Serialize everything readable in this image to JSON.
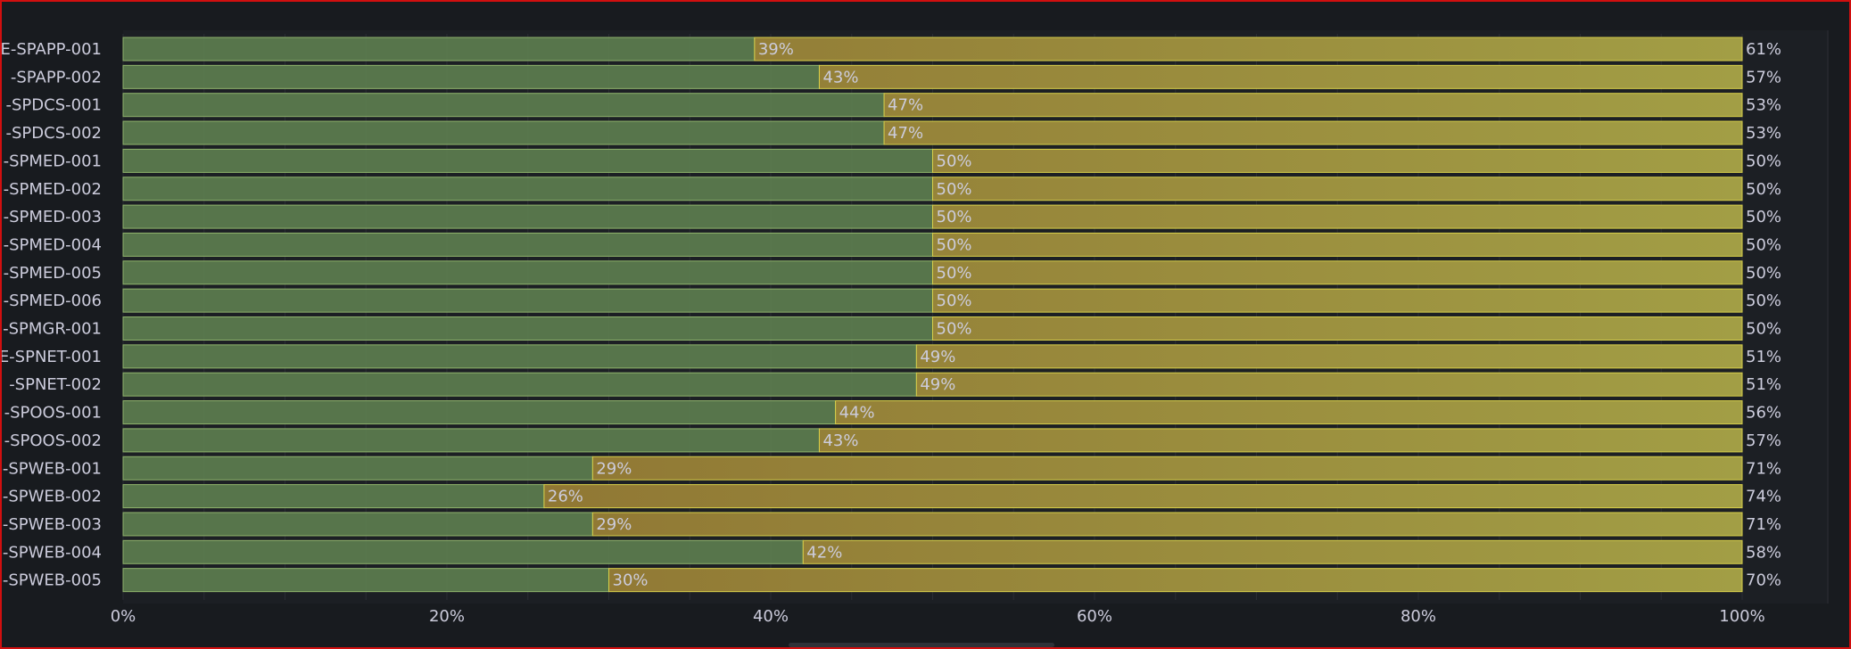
{
  "colors": {
    "background": "#181b1f",
    "border": "#d10f0f",
    "green_fill": "#5b7a4e",
    "green_edge": "#8fb36c",
    "orange_fill": "#8a6a2e",
    "yellow_fill": "#a29e45",
    "yellow_edge": "#d7cf4a",
    "text": "#ccccdc",
    "grid": "#2a2d33"
  },
  "chart_data": {
    "type": "bar",
    "orientation": "horizontal",
    "stacked": true,
    "categories": [
      "E-SPAPP-001",
      "-SPAPP-002",
      "-SPDCS-001",
      "-SPDCS-002",
      "-SPMED-001",
      "-SPMED-002",
      "-SPMED-003",
      "-SPMED-004",
      "-SPMED-005",
      "-SPMED-006",
      "-SPMGR-001",
      "E-SPNET-001",
      "-SPNET-002",
      "-SPOOS-001",
      "-SPOOS-002",
      "-SPWEB-001",
      "-SPWEB-002",
      "-SPWEB-003",
      "-SPWEB-004",
      "-SPWEB-005"
    ],
    "series": [
      {
        "values": [
          39,
          43,
          47,
          47,
          50,
          50,
          50,
          50,
          50,
          50,
          50,
          49,
          49,
          44,
          43,
          29,
          26,
          29,
          42,
          30
        ]
      },
      {
        "values": [
          61,
          57,
          53,
          53,
          50,
          50,
          50,
          50,
          50,
          50,
          50,
          51,
          51,
          56,
          57,
          71,
          74,
          71,
          58,
          70
        ]
      }
    ],
    "value_labels": [
      [
        "39%",
        "43%",
        "47%",
        "47%",
        "50%",
        "50%",
        "50%",
        "50%",
        "50%",
        "50%",
        "50%",
        "49%",
        "49%",
        "44%",
        "43%",
        "29%",
        "26%",
        "29%",
        "42%",
        "30%"
      ],
      [
        "61%",
        "57%",
        "53%",
        "53%",
        "50%",
        "50%",
        "50%",
        "50%",
        "50%",
        "50%",
        "50%",
        "51%",
        "51%",
        "56%",
        "57%",
        "71%",
        "74%",
        "71%",
        "58%",
        "70%"
      ]
    ],
    "x_ticks": [
      "0%",
      "20%",
      "40%",
      "60%",
      "80%",
      "100%"
    ],
    "xlim": [
      0,
      100
    ],
    "grid": true,
    "legend": "none",
    "title": "",
    "xlabel": "",
    "ylabel": ""
  }
}
